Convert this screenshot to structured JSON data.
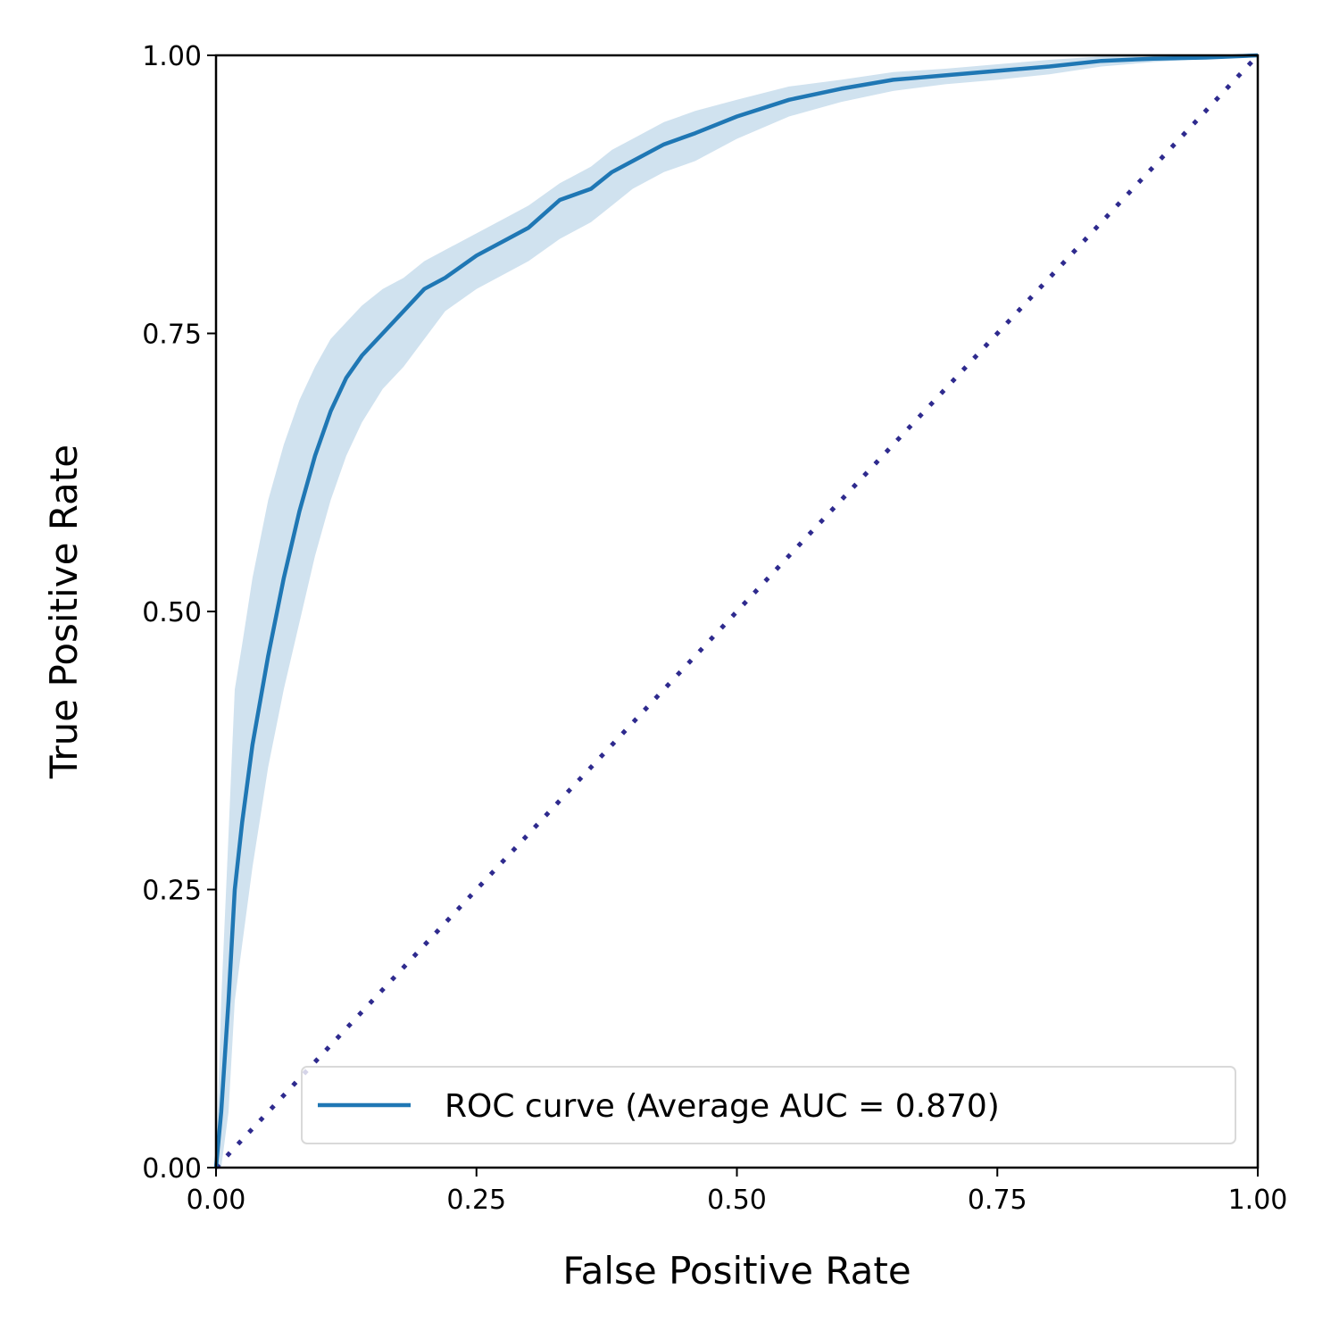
{
  "chart_data": {
    "type": "line",
    "title": "",
    "xlabel": "False Positive Rate",
    "ylabel": "True Positive Rate",
    "xlim": [
      0,
      1
    ],
    "ylim": [
      0,
      1
    ],
    "xticks": [
      "0.00",
      "0.25",
      "0.50",
      "0.75",
      "1.00"
    ],
    "yticks": [
      "0.00",
      "0.25",
      "0.50",
      "0.75",
      "1.00"
    ],
    "grid": false,
    "legend_position": "lower-right",
    "series": [
      {
        "name": "ROC curve (Average AUC = 0.870)",
        "color": "#1f77b4",
        "band_color": "#d0e2ef",
        "x": [
          0.0,
          0.005,
          0.012,
          0.018,
          0.025,
          0.035,
          0.05,
          0.065,
          0.08,
          0.095,
          0.11,
          0.125,
          0.14,
          0.16,
          0.18,
          0.2,
          0.22,
          0.25,
          0.28,
          0.3,
          0.33,
          0.36,
          0.38,
          0.4,
          0.43,
          0.46,
          0.5,
          0.55,
          0.6,
          0.65,
          0.7,
          0.75,
          0.8,
          0.85,
          0.9,
          0.95,
          1.0
        ],
        "y": [
          0.0,
          0.05,
          0.15,
          0.25,
          0.31,
          0.38,
          0.46,
          0.53,
          0.59,
          0.64,
          0.68,
          0.71,
          0.73,
          0.75,
          0.77,
          0.79,
          0.8,
          0.82,
          0.835,
          0.845,
          0.87,
          0.88,
          0.895,
          0.905,
          0.92,
          0.93,
          0.945,
          0.96,
          0.97,
          0.978,
          0.982,
          0.986,
          0.99,
          0.995,
          0.997,
          0.998,
          1.0
        ],
        "upper": [
          0.0,
          0.15,
          0.3,
          0.43,
          0.47,
          0.53,
          0.6,
          0.65,
          0.69,
          0.72,
          0.745,
          0.76,
          0.775,
          0.79,
          0.8,
          0.815,
          0.825,
          0.84,
          0.855,
          0.865,
          0.885,
          0.9,
          0.915,
          0.925,
          0.94,
          0.95,
          0.96,
          0.972,
          0.978,
          0.985,
          0.988,
          0.992,
          0.996,
          0.999,
          1.0,
          1.0,
          1.0
        ],
        "lower": [
          0.0,
          0.0,
          0.05,
          0.15,
          0.2,
          0.27,
          0.36,
          0.43,
          0.49,
          0.55,
          0.6,
          0.64,
          0.67,
          0.7,
          0.72,
          0.745,
          0.77,
          0.79,
          0.805,
          0.815,
          0.835,
          0.85,
          0.865,
          0.88,
          0.895,
          0.905,
          0.925,
          0.945,
          0.958,
          0.968,
          0.974,
          0.978,
          0.983,
          0.99,
          0.994,
          0.997,
          1.0
        ]
      },
      {
        "name": "",
        "style": "dotted",
        "color": "#2e2a8e",
        "x": [
          0,
          1
        ],
        "y": [
          0,
          1
        ]
      }
    ]
  }
}
